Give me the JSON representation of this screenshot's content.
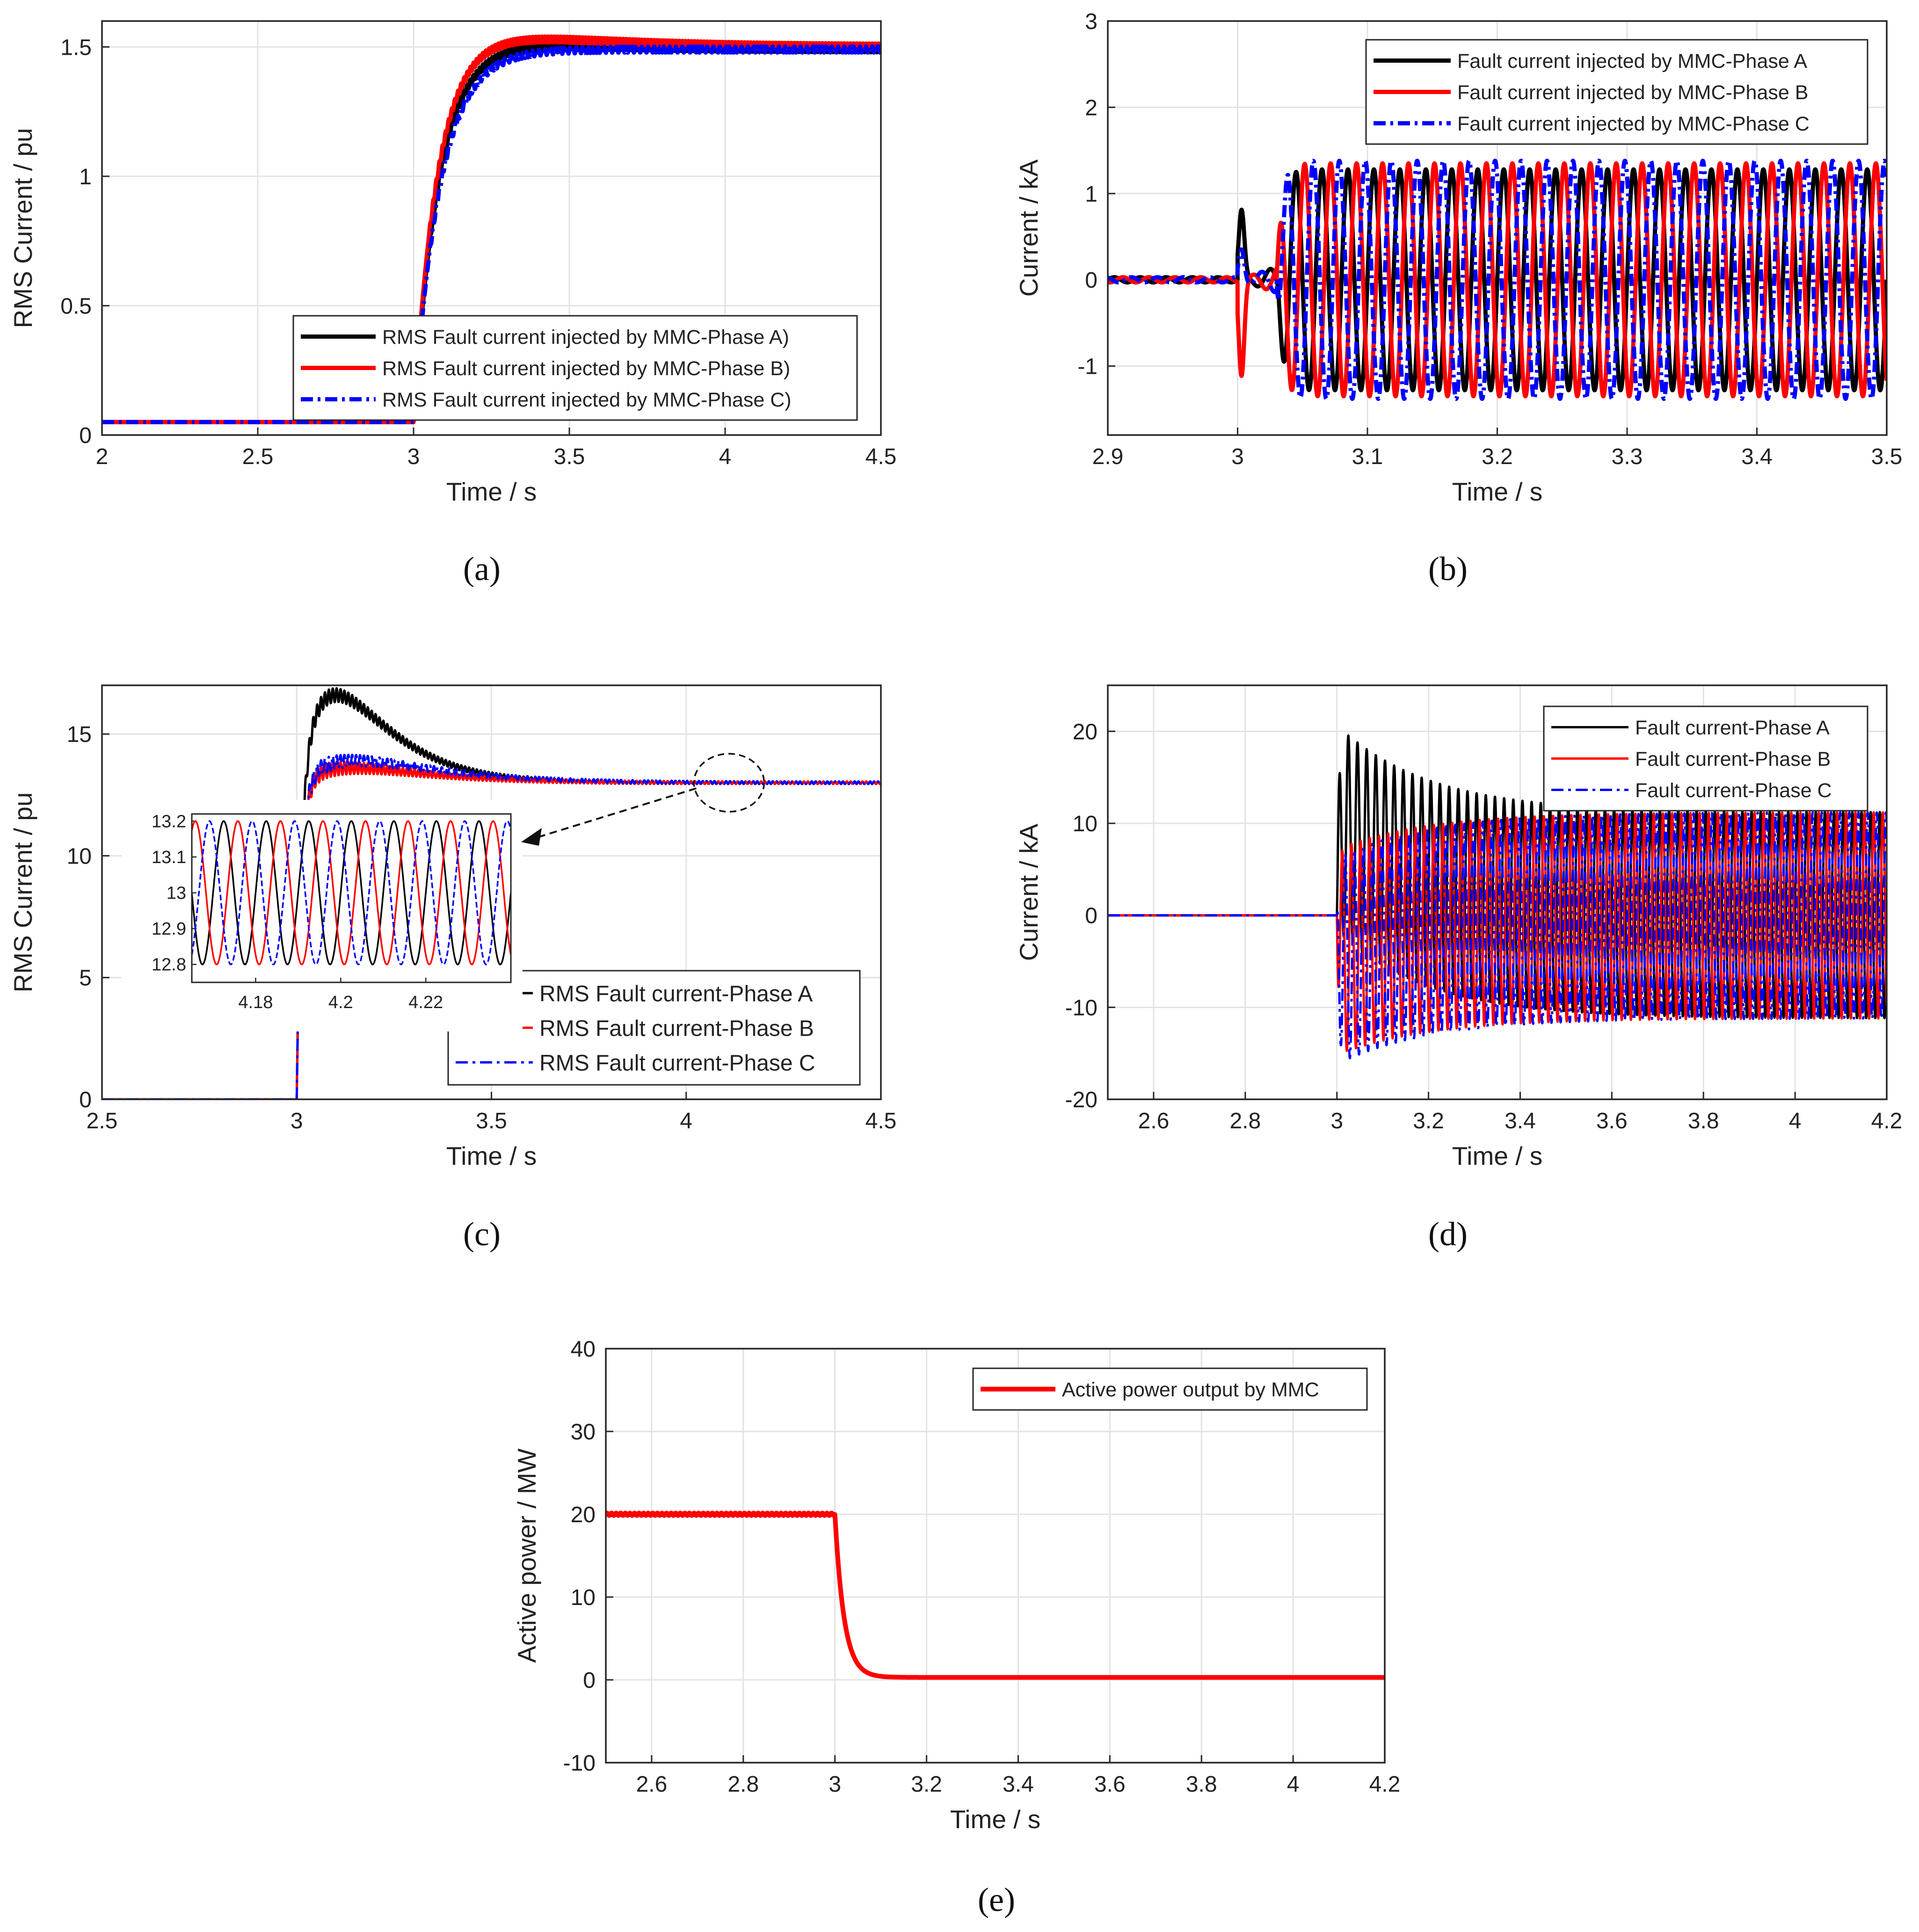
{
  "figure": {
    "colors": {
      "phase_a": "#000000",
      "phase_b": "#ff0000",
      "phase_c": "#0000ff",
      "grid": "#e3e3e3",
      "axis": "#262626"
    }
  },
  "chart_data": [
    {
      "id": "a",
      "type": "line",
      "caption_letter": "a",
      "xlabel": "Time / s",
      "ylabel": "RMS Current / pu",
      "xlim": [
        2,
        4.5
      ],
      "ylim": [
        0,
        1.6
      ],
      "xticks": [
        2,
        2.5,
        3,
        3.5,
        4,
        4.5
      ],
      "yticks": [
        0,
        0.5,
        1,
        1.5
      ],
      "xtick_labels": [
        "2",
        "2.5",
        "3",
        "3.5",
        "4",
        "4.5"
      ],
      "ytick_labels": [
        "0",
        "0.5",
        "1",
        "1.5"
      ],
      "grid": true,
      "legend_position": "bottom-right",
      "fault_time": 3.0,
      "series": [
        {
          "name": "RMS Fault current injected by MMC-Phase A)",
          "color": "#000000",
          "style": "solid",
          "pre": 0.05,
          "post": 1.49,
          "overshoot": 0.02,
          "tau": 0.08
        },
        {
          "name": "RMS Fault current injected by MMC-Phase B)",
          "color": "#ff0000",
          "style": "solid",
          "pre": 0.05,
          "post": 1.5,
          "overshoot": 0.04,
          "tau": 0.075
        },
        {
          "name": "RMS Fault current injected by MMC-Phase C)",
          "color": "#0000ff",
          "style": "dashdot",
          "pre": 0.05,
          "post": 1.49,
          "overshoot": 0.0,
          "tau": 0.085
        }
      ]
    },
    {
      "id": "b",
      "type": "line",
      "caption_letter": "b",
      "xlabel": "Time / s",
      "ylabel": "Current / kA",
      "xlim": [
        2.9,
        3.5
      ],
      "ylim": [
        -1.8,
        3
      ],
      "xticks": [
        2.9,
        3,
        3.1,
        3.2,
        3.3,
        3.4,
        3.5
      ],
      "yticks": [
        -1,
        0,
        1,
        2,
        3
      ],
      "xtick_labels": [
        "2.9",
        "3",
        "3.1",
        "3.2",
        "3.3",
        "3.4",
        "3.5"
      ],
      "ytick_labels": [
        "-1",
        "0",
        "1",
        "2",
        "3"
      ],
      "grid": true,
      "legend_position": "top-right",
      "fault_time": 3.0,
      "frequency_hz": 50,
      "series": [
        {
          "name": "Fault current injected by MMC-Phase A",
          "color": "#000000",
          "style": "solid",
          "amplitude": 1.28,
          "phase_deg": 0
        },
        {
          "name": "Fault current injected by MMC-Phase B",
          "color": "#ff0000",
          "style": "solid",
          "amplitude": 1.35,
          "phase_deg": -120
        },
        {
          "name": "Fault current injected by MMC-Phase C",
          "color": "#0000ff",
          "style": "dashdot",
          "amplitude": 1.38,
          "phase_deg": 120
        }
      ]
    },
    {
      "id": "c",
      "type": "line",
      "caption_letter": "c",
      "xlabel": "Time / s",
      "ylabel": "RMS Current / pu",
      "xlim": [
        2.5,
        4.5
      ],
      "ylim": [
        0,
        17
      ],
      "xticks": [
        2.5,
        3,
        3.5,
        4,
        4.5
      ],
      "yticks": [
        0,
        5,
        10,
        15
      ],
      "xtick_labels": [
        "2.5",
        "3",
        "3.5",
        "4",
        "4.5"
      ],
      "ytick_labels": [
        "0",
        "5",
        "10",
        "15"
      ],
      "grid": true,
      "legend_position": "bottom-right",
      "fault_time": 3.0,
      "series": [
        {
          "name": "RMS Fault current-Phase A",
          "color": "#000000",
          "style": "solid",
          "pre": 0,
          "post": 13.0,
          "peak": 16.6,
          "peak_time": 3.1
        },
        {
          "name": "RMS Fault current-Phase B",
          "color": "#ff0000",
          "style": "solid",
          "pre": 0,
          "post": 13.0,
          "peak": 13.6,
          "peak_time": 3.14
        },
        {
          "name": "RMS Fault current-Phase C",
          "color": "#0000ff",
          "style": "dashdot",
          "pre": 0,
          "post": 13.0,
          "peak": 13.9,
          "peak_time": 3.15
        }
      ],
      "inset": {
        "xlim": [
          4.165,
          4.24
        ],
        "ylim": [
          12.75,
          13.22
        ],
        "xticks": [
          4.18,
          4.2,
          4.22
        ],
        "yticks": [
          12.8,
          12.9,
          13,
          13.1,
          13.2
        ],
        "xtick_labels": [
          "4.18",
          "4.2",
          "4.22"
        ],
        "ytick_labels": [
          "12.8",
          "12.9",
          "13",
          "13.1",
          "13.2"
        ],
        "center": 13.0,
        "amplitude": 0.2,
        "frequency_hz": 100,
        "zoom_center": [
          4.11,
          13.0
        ]
      }
    },
    {
      "id": "d",
      "type": "line",
      "caption_letter": "d",
      "xlabel": "Time / s",
      "ylabel": "Current / kA",
      "xlim": [
        2.5,
        4.2
      ],
      "ylim": [
        -20,
        25
      ],
      "xticks": [
        2.6,
        2.8,
        3,
        3.2,
        3.4,
        3.6,
        3.8,
        4,
        4.2
      ],
      "yticks": [
        -20,
        -10,
        0,
        10,
        20
      ],
      "xtick_labels": [
        "2.6",
        "2.8",
        "3",
        "3.2",
        "3.4",
        "3.6",
        "3.8",
        "4",
        "4.2"
      ],
      "ytick_labels": [
        "-20",
        "-10",
        "0",
        "10",
        "20"
      ],
      "grid": true,
      "legend_position": "top-right",
      "fault_time": 3.0,
      "frequency_hz": 50,
      "series": [
        {
          "name": "Fault current-Phase A",
          "color": "#000000",
          "style": "solid",
          "amplitude": 11.2,
          "dc_offset": 9.5,
          "phase_deg": 0
        },
        {
          "name": "Fault current-Phase B",
          "color": "#ff0000",
          "style": "solid",
          "amplitude": 11.2,
          "dc_offset": -4.0,
          "phase_deg": -120
        },
        {
          "name": "Fault current-Phase C",
          "color": "#0000ff",
          "style": "dashdot",
          "amplitude": 11.2,
          "dc_offset": -5.0,
          "phase_deg": 120
        }
      ]
    },
    {
      "id": "e",
      "type": "line",
      "caption_letter": "e",
      "xlabel": "Time / s",
      "ylabel": "Active power / MW",
      "xlim": [
        2.5,
        4.2
      ],
      "ylim": [
        -10,
        40
      ],
      "xticks": [
        2.6,
        2.8,
        3,
        3.2,
        3.4,
        3.6,
        3.8,
        4,
        4.2
      ],
      "yticks": [
        -10,
        0,
        10,
        20,
        30,
        40
      ],
      "xtick_labels": [
        "2.6",
        "2.8",
        "3",
        "3.2",
        "3.4",
        "3.6",
        "3.8",
        "4",
        "4.2"
      ],
      "ytick_labels": [
        "-10",
        "0",
        "10",
        "20",
        "30",
        "40"
      ],
      "grid": true,
      "legend_position": "top-right",
      "fault_time": 3.0,
      "series": [
        {
          "name": "Active power output by MMC",
          "color": "#ff0000",
          "style": "solid",
          "pre": 20,
          "post": 0.3,
          "tau": 0.02
        }
      ]
    }
  ]
}
